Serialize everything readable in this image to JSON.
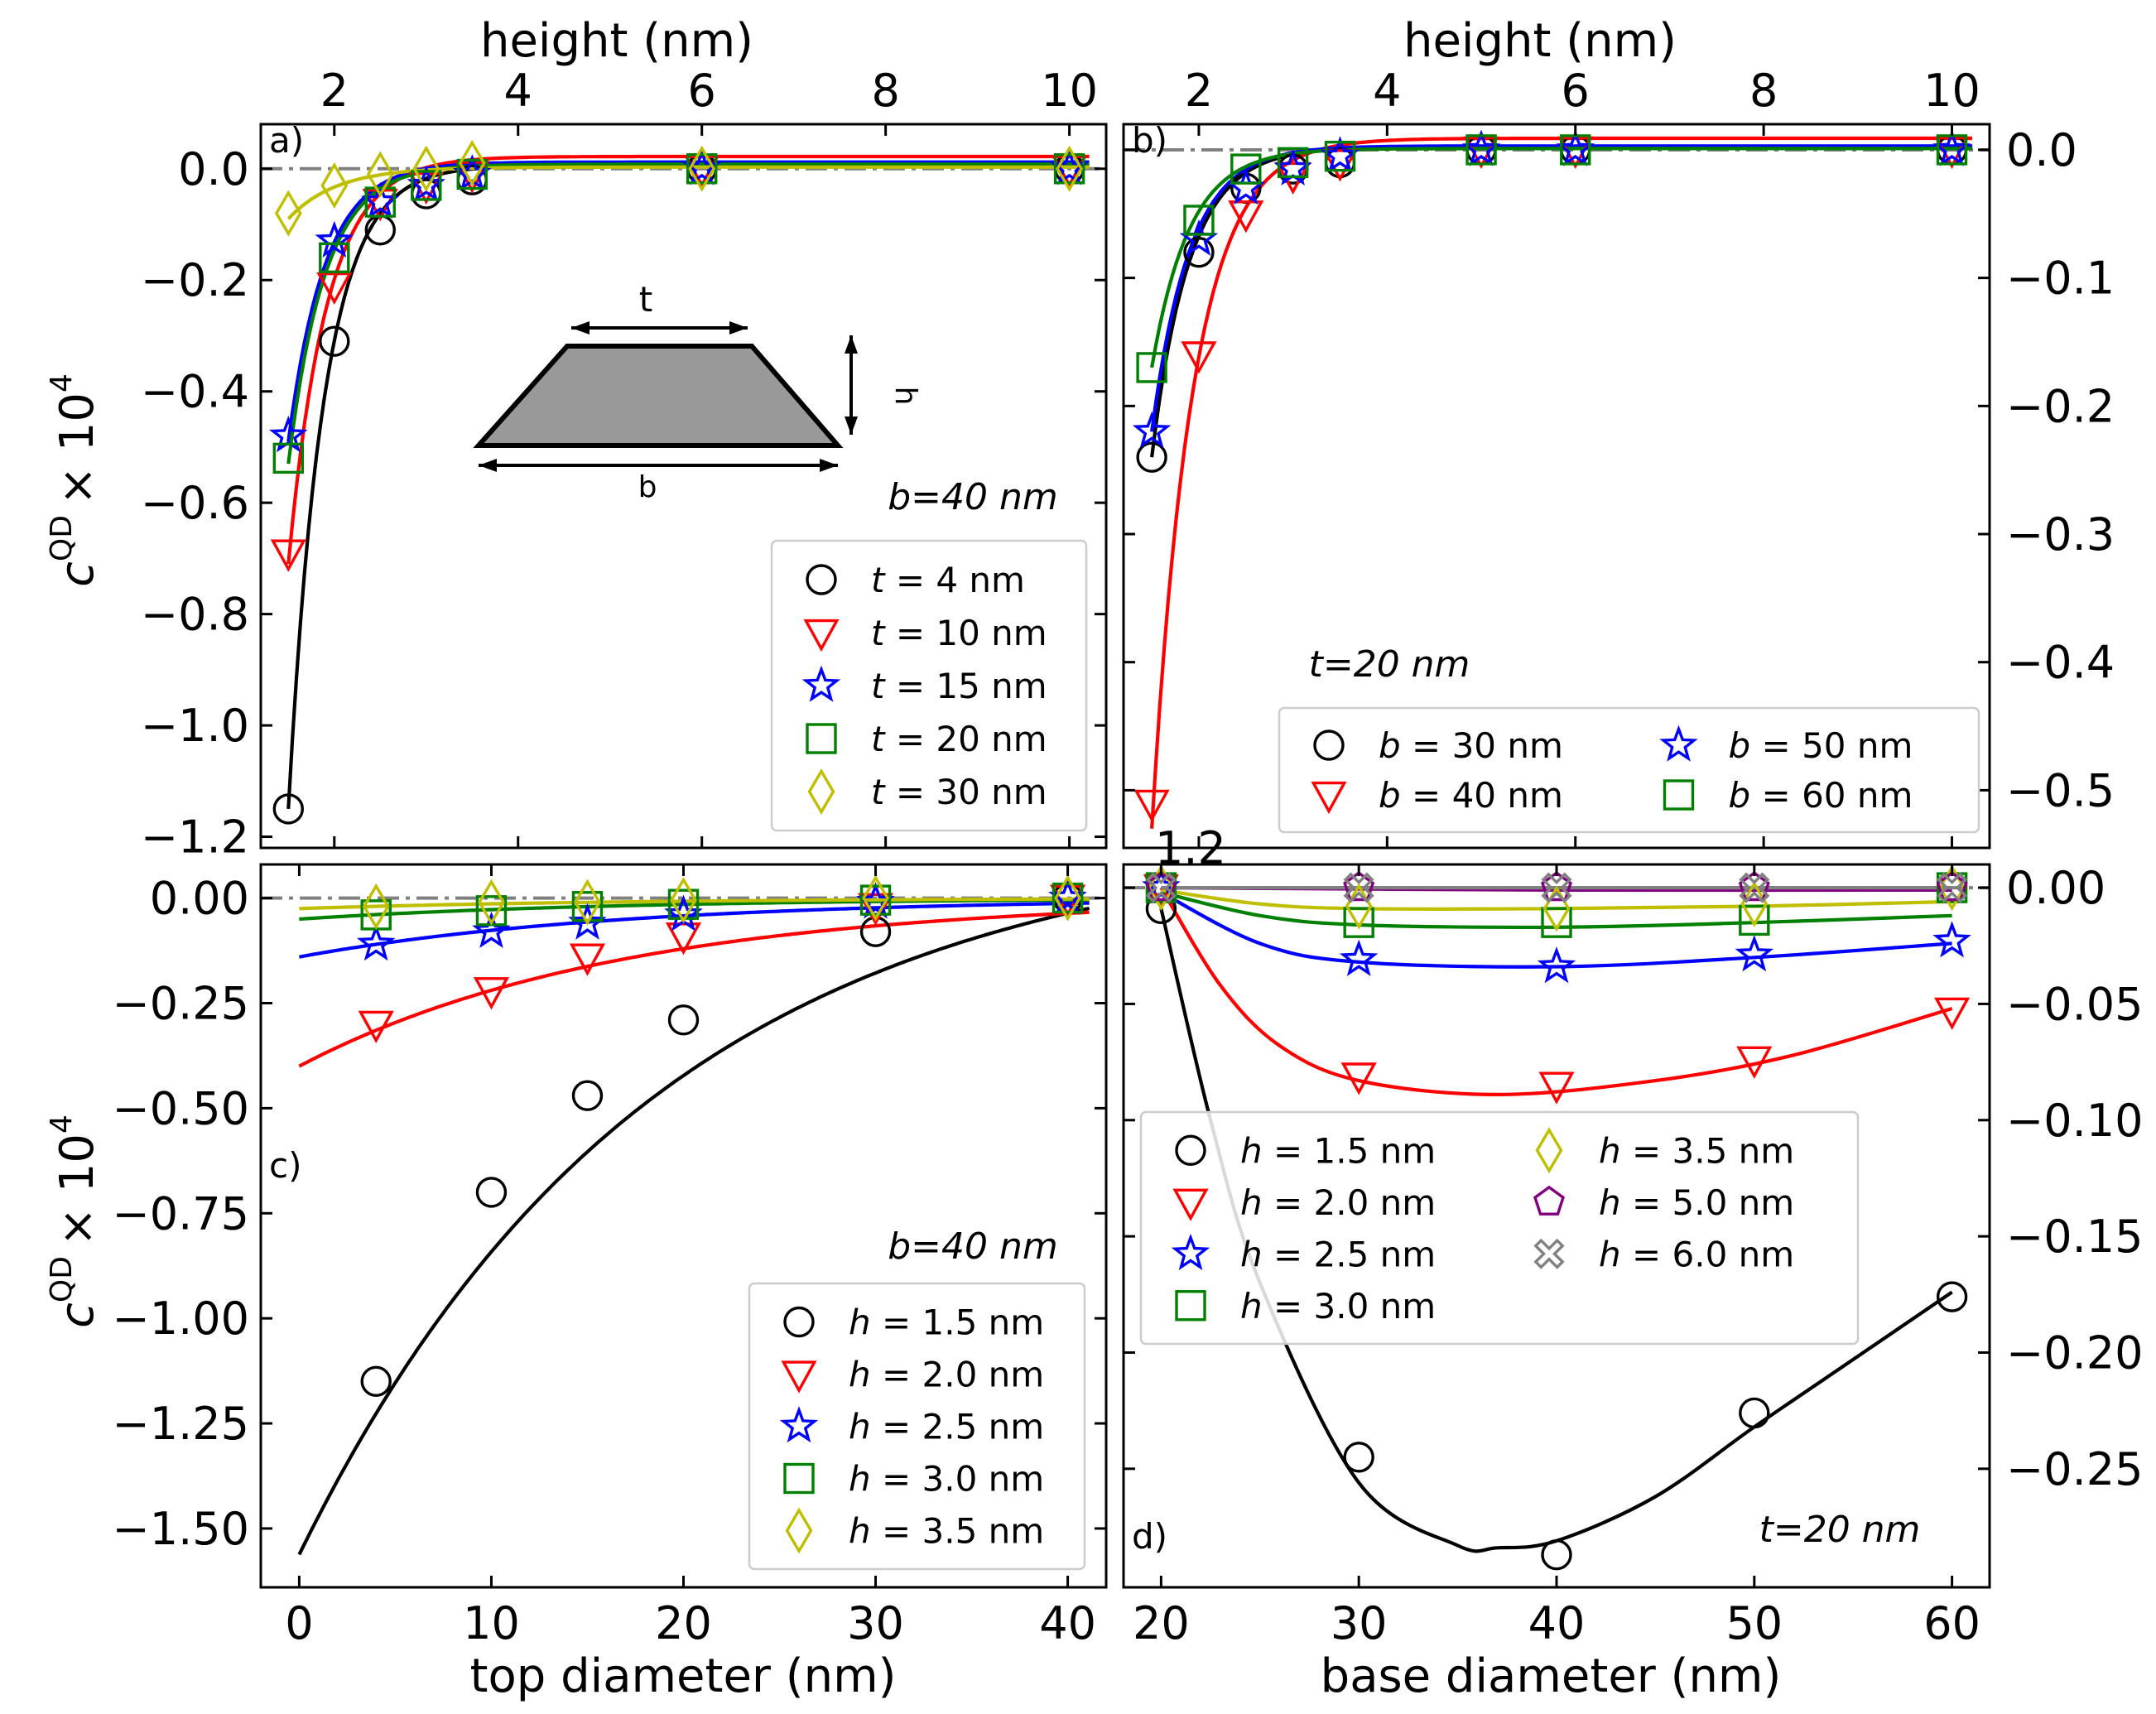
{
  "figure": {
    "ylabel": "c^QD × 10^4",
    "ylabel_base": "c",
    "ylabel_sup": "QD",
    "ylabel_mult": "× 10",
    "ylabel_exp": "4",
    "top_xlabel": "height (nm)",
    "bottom_xlabel_left": "top diameter (nm)",
    "bottom_xlabel_right": "base diameter (nm)",
    "inset_labels": [
      "t",
      "h",
      "b"
    ],
    "stray_label": "1.2"
  },
  "colors": {
    "black": "#000000",
    "red": "#ff0000",
    "blue": "#0000ff",
    "green": "#008000",
    "yellow": "#bfbf00",
    "purple": "#800080",
    "gray": "#808080",
    "refline": "#808080",
    "inset_fill": "#999999"
  },
  "chart_data": [
    {
      "panel": "a)",
      "type": "line",
      "xlabel": "height (nm)",
      "ylabel": "c^QD × 10^4",
      "xlim": [
        1.2,
        10.4
      ],
      "ylim": [
        -1.22,
        0.08
      ],
      "xticks": [
        2,
        4,
        6,
        8,
        10
      ],
      "yticks": [
        0.0,
        -0.2,
        -0.4,
        -0.6,
        -0.8,
        -1.0,
        -1.2
      ],
      "ytick_labels": [
        "0.0",
        "−0.2",
        "−0.4",
        "−0.6",
        "−0.8",
        "−1.0",
        "−1.2"
      ],
      "annotation": "b=40 nm",
      "series": [
        {
          "name": "t = 4 nm",
          "var": "t",
          "value": "4 nm",
          "color": "black",
          "marker": "circle",
          "x": [
            1.5,
            2.0,
            2.5,
            3.0,
            3.5,
            6.0,
            10.0
          ],
          "y": [
            -1.15,
            -0.31,
            -0.11,
            -0.045,
            -0.02,
            0.0,
            0.0
          ],
          "curve": {
            "a": -1.15,
            "k": 2.6,
            "c": 0.006,
            "x0": 1.5
          }
        },
        {
          "name": "t = 10 nm",
          "var": "t",
          "value": "10 nm",
          "color": "red",
          "marker": "tri_down",
          "x": [
            1.5,
            2.0,
            2.5,
            3.0,
            3.5,
            6.0,
            10.0
          ],
          "y": [
            -0.69,
            -0.21,
            -0.06,
            -0.03,
            -0.01,
            0.0,
            0.0
          ],
          "curve": {
            "a": -0.71,
            "k": 2.4,
            "c": 0.022,
            "x0": 1.5
          }
        },
        {
          "name": "t = 15 nm",
          "var": "t",
          "value": "15 nm",
          "color": "blue",
          "marker": "star",
          "x": [
            1.5,
            2.0,
            2.5,
            3.0,
            3.5,
            6.0,
            10.0
          ],
          "y": [
            -0.48,
            -0.13,
            -0.06,
            -0.03,
            -0.01,
            0.0,
            0.0
          ],
          "curve": {
            "a": -0.49,
            "k": 2.5,
            "c": 0.012,
            "x0": 1.5
          }
        },
        {
          "name": "t = 20 nm",
          "var": "t",
          "value": "20 nm",
          "color": "green",
          "marker": "square",
          "x": [
            1.5,
            2.0,
            2.5,
            3.0,
            3.5,
            6.0,
            10.0
          ],
          "y": [
            -0.52,
            -0.16,
            -0.06,
            -0.03,
            -0.01,
            0.0,
            0.0
          ],
          "curve": {
            "a": -0.53,
            "k": 2.5,
            "c": 0.008,
            "x0": 1.5
          }
        },
        {
          "name": "t = 30 nm",
          "var": "t",
          "value": "30 nm",
          "color": "yellow",
          "marker": "diamond",
          "x": [
            1.5,
            2.0,
            2.5,
            3.0,
            3.5,
            6.0,
            10.0
          ],
          "y": [
            -0.08,
            -0.03,
            -0.01,
            0.0,
            0.01,
            0.0,
            0.0
          ],
          "curve": {
            "a": -0.09,
            "k": 1.9,
            "c": 0.003,
            "x0": 1.5
          }
        }
      ]
    },
    {
      "panel": "b)",
      "type": "line",
      "xlabel": "height (nm)",
      "ylabel": "c^QD × 10^4",
      "xlim": [
        1.2,
        10.4
      ],
      "ylim": [
        -0.545,
        0.02
      ],
      "xticks": [
        2,
        4,
        6,
        8,
        10
      ],
      "yticks": [
        0.0,
        -0.1,
        -0.2,
        -0.3,
        -0.4,
        -0.5
      ],
      "ytick_labels": [
        "0.0",
        "−0.1",
        "−0.2",
        "−0.3",
        "−0.4",
        "−0.5"
      ],
      "annotation": "t=20 nm",
      "series": [
        {
          "name": "b = 30 nm",
          "var": "b",
          "value": "30 nm",
          "color": "black",
          "marker": "circle",
          "x": [
            1.5,
            2.0,
            2.5,
            3.0,
            3.5,
            5.0,
            6.0,
            10.0
          ],
          "y": [
            -0.24,
            -0.08,
            -0.03,
            -0.015,
            -0.01,
            0.0,
            0.0,
            0.0
          ],
          "curve": {
            "a": -0.24,
            "k": 2.5,
            "c": 0.002,
            "x0": 1.5
          }
        },
        {
          "name": "b = 40 nm",
          "var": "b",
          "value": "40 nm",
          "color": "red",
          "marker": "tri_down",
          "x": [
            1.5,
            2.0,
            2.5,
            3.0,
            3.5,
            5.0,
            6.0,
            10.0
          ],
          "y": [
            -0.51,
            -0.16,
            -0.05,
            -0.02,
            -0.01,
            0.0,
            0.0,
            0.0
          ],
          "curve": {
            "a": -0.53,
            "k": 2.3,
            "c": 0.009,
            "x0": 1.5
          }
        },
        {
          "name": "b = 50 nm",
          "var": "b",
          "value": "50 nm",
          "color": "blue",
          "marker": "star",
          "x": [
            1.5,
            2.0,
            2.5,
            3.0,
            3.5,
            5.0,
            6.0,
            10.0
          ],
          "y": [
            -0.22,
            -0.07,
            -0.03,
            -0.015,
            -0.005,
            0.0,
            0.0,
            0.0
          ],
          "curve": {
            "a": -0.22,
            "k": 2.5,
            "c": 0.003,
            "x0": 1.5
          }
        },
        {
          "name": "b = 60 nm",
          "var": "b",
          "value": "60 nm",
          "color": "green",
          "marker": "square",
          "x": [
            1.5,
            2.0,
            2.5,
            3.0,
            3.5,
            5.0,
            6.0,
            10.0
          ],
          "y": [
            -0.17,
            -0.055,
            -0.015,
            -0.01,
            -0.005,
            0.0,
            0.0,
            0.0
          ],
          "curve": {
            "a": -0.17,
            "k": 2.5,
            "c": 0.001,
            "x0": 1.5
          }
        }
      ]
    },
    {
      "panel": "c)",
      "type": "line",
      "xlabel": "top diameter (nm)",
      "ylabel": "c^QD × 10^4",
      "xlim": [
        -2,
        42
      ],
      "ylim": [
        -1.64,
        0.08
      ],
      "xticks": [
        0,
        10,
        20,
        30,
        40
      ],
      "yticks": [
        0.0,
        -0.25,
        -0.5,
        -0.75,
        -1.0,
        -1.25,
        -1.5
      ],
      "ytick_labels": [
        "0.00",
        "−0.25",
        "−0.50",
        "−0.75",
        "−1.00",
        "−1.25",
        "−1.50"
      ],
      "annotation": "b=40 nm",
      "series": [
        {
          "name": "h = 1.5 nm",
          "var": "h",
          "value": "1.5 nm",
          "color": "black",
          "marker": "circle",
          "x": [
            4,
            10,
            15,
            20,
            30,
            40
          ],
          "y": [
            -1.15,
            -0.7,
            -0.47,
            -0.29,
            -0.08,
            0.0
          ],
          "curve": {
            "a": -1.562,
            "k": 0.0541,
            "c": 0.162,
            "x0": 0
          }
        },
        {
          "name": "h = 2.0 nm",
          "var": "h",
          "value": "2.0 nm",
          "color": "red",
          "marker": "tri_down",
          "x": [
            4,
            10,
            15,
            20,
            30,
            40
          ],
          "y": [
            -0.3,
            -0.22,
            -0.14,
            -0.09,
            -0.02,
            0.0
          ],
          "curve": {
            "a": -0.4,
            "k": 0.06,
            "c": 0.0,
            "x0": 0
          }
        },
        {
          "name": "h = 2.5 nm",
          "var": "h",
          "value": "2.5 nm",
          "color": "blue",
          "marker": "star",
          "x": [
            4,
            10,
            15,
            20,
            30,
            40
          ],
          "y": [
            -0.11,
            -0.08,
            -0.06,
            -0.04,
            -0.01,
            0.0
          ],
          "curve": {
            "a": -0.14,
            "k": 0.06,
            "c": 0.0,
            "x0": 0
          }
        },
        {
          "name": "h = 3.0 nm",
          "var": "h",
          "value": "3.0 nm",
          "color": "green",
          "marker": "square",
          "x": [
            4,
            10,
            15,
            20,
            30,
            40
          ],
          "y": [
            -0.04,
            -0.03,
            -0.02,
            -0.015,
            -0.005,
            0.0
          ],
          "curve": {
            "a": -0.05,
            "k": 0.06,
            "c": 0.0,
            "x0": 0
          }
        },
        {
          "name": "h = 3.5 nm",
          "var": "h",
          "value": "3.5 nm",
          "color": "yellow",
          "marker": "diamond",
          "x": [
            4,
            10,
            15,
            20,
            30,
            40
          ],
          "y": [
            -0.02,
            -0.01,
            -0.01,
            -0.005,
            0.0,
            0.0
          ],
          "curve": {
            "a": -0.025,
            "k": 0.06,
            "c": 0.0,
            "x0": 0
          }
        }
      ]
    },
    {
      "panel": "d)",
      "type": "line",
      "xlabel": "base diameter (nm)",
      "ylabel": "c^QD × 10^4",
      "xlim": [
        18.1,
        61.9
      ],
      "ylim": [
        -0.301,
        0.01
      ],
      "xticks": [
        20,
        30,
        40,
        50,
        60
      ],
      "yticks": [
        0.0,
        -0.05,
        -0.1,
        -0.15,
        -0.2,
        -0.25
      ],
      "ytick_labels": [
        "0.00",
        "−0.05",
        "−0.10",
        "−0.15",
        "−0.20",
        "−0.25"
      ],
      "annotation": "t=20 nm",
      "series": [
        {
          "name": "h = 1.5 nm",
          "var": "h",
          "value": "1.5 nm",
          "color": "black",
          "marker": "circle",
          "x": [
            20,
            30,
            40,
            50,
            60
          ],
          "y": [
            -0.009,
            -0.245,
            -0.287,
            -0.226,
            -0.176
          ],
          "curve_pts": [
            [
              20,
              -0.009
            ],
            [
              22.5,
              -0.1
            ],
            [
              25,
              -0.17
            ],
            [
              30,
              -0.256
            ],
            [
              35,
              -0.283
            ],
            [
              37,
              -0.284
            ],
            [
              40,
              -0.281
            ],
            [
              45,
              -0.262
            ],
            [
              50,
              -0.232
            ],
            [
              55,
              -0.203
            ],
            [
              60,
              -0.174
            ]
          ]
        },
        {
          "name": "h = 2.0 nm",
          "var": "h",
          "value": "2.0 nm",
          "color": "red",
          "marker": "tri_down",
          "x": [
            20,
            30,
            40,
            50,
            60
          ],
          "y": [
            0.0,
            -0.081,
            -0.085,
            -0.074,
            -0.053
          ],
          "curve_pts": [
            [
              20,
              0.0
            ],
            [
              23,
              -0.042
            ],
            [
              26,
              -0.068
            ],
            [
              30,
              -0.083
            ],
            [
              37,
              -0.089
            ],
            [
              45,
              -0.083
            ],
            [
              52,
              -0.072
            ],
            [
              60,
              -0.052
            ]
          ]
        },
        {
          "name": "h = 2.5 nm",
          "var": "h",
          "value": "2.5 nm",
          "color": "blue",
          "marker": "star",
          "x": [
            20,
            30,
            40,
            50,
            60
          ],
          "y": [
            0.0,
            -0.031,
            -0.034,
            -0.029,
            -0.023
          ],
          "curve_pts": [
            [
              20,
              -0.002
            ],
            [
              25,
              -0.024
            ],
            [
              30,
              -0.032
            ],
            [
              40,
              -0.034
            ],
            [
              50,
              -0.03
            ],
            [
              60,
              -0.024
            ]
          ]
        },
        {
          "name": "h = 3.0 nm",
          "var": "h",
          "value": "3.0 nm",
          "color": "green",
          "marker": "square",
          "x": [
            20,
            30,
            40,
            50,
            60
          ],
          "y": [
            0.0,
            -0.015,
            -0.015,
            -0.014,
            0.0
          ],
          "curve_pts": [
            [
              20,
              -0.002
            ],
            [
              25,
              -0.012
            ],
            [
              30,
              -0.016
            ],
            [
              40,
              -0.017
            ],
            [
              50,
              -0.015
            ],
            [
              60,
              -0.012
            ]
          ]
        },
        {
          "name": "h = 3.5 nm",
          "var": "h",
          "value": "3.5 nm",
          "color": "yellow",
          "marker": "diamond",
          "x": [
            20,
            30,
            40,
            50,
            60
          ],
          "y": [
            0.0,
            -0.008,
            -0.009,
            -0.007,
            0.0
          ],
          "curve_pts": [
            [
              20,
              -0.001
            ],
            [
              25,
              -0.007
            ],
            [
              30,
              -0.009
            ],
            [
              40,
              -0.009
            ],
            [
              50,
              -0.008
            ],
            [
              60,
              -0.006
            ]
          ]
        },
        {
          "name": "h = 5.0 nm",
          "var": "h",
          "value": "5.0 nm",
          "color": "purple",
          "marker": "pentagon",
          "x": [
            20,
            30,
            40,
            50,
            60
          ],
          "y": [
            0.0,
            0.0,
            0.0,
            0.0,
            0.0
          ],
          "curve_pts": [
            [
              20,
              0.0
            ],
            [
              40,
              -0.001
            ],
            [
              60,
              -0.001
            ]
          ]
        },
        {
          "name": "h = 6.0 nm",
          "var": "h",
          "value": "6.0 nm",
          "color": "gray",
          "marker": "x_thick",
          "x": [
            20,
            30,
            40,
            50,
            60
          ],
          "y": [
            0.0,
            0.0,
            0.0,
            0.0,
            0.0
          ],
          "curve_pts": [
            [
              20,
              0.0
            ],
            [
              40,
              0.0
            ],
            [
              60,
              0.0
            ]
          ]
        }
      ]
    }
  ]
}
